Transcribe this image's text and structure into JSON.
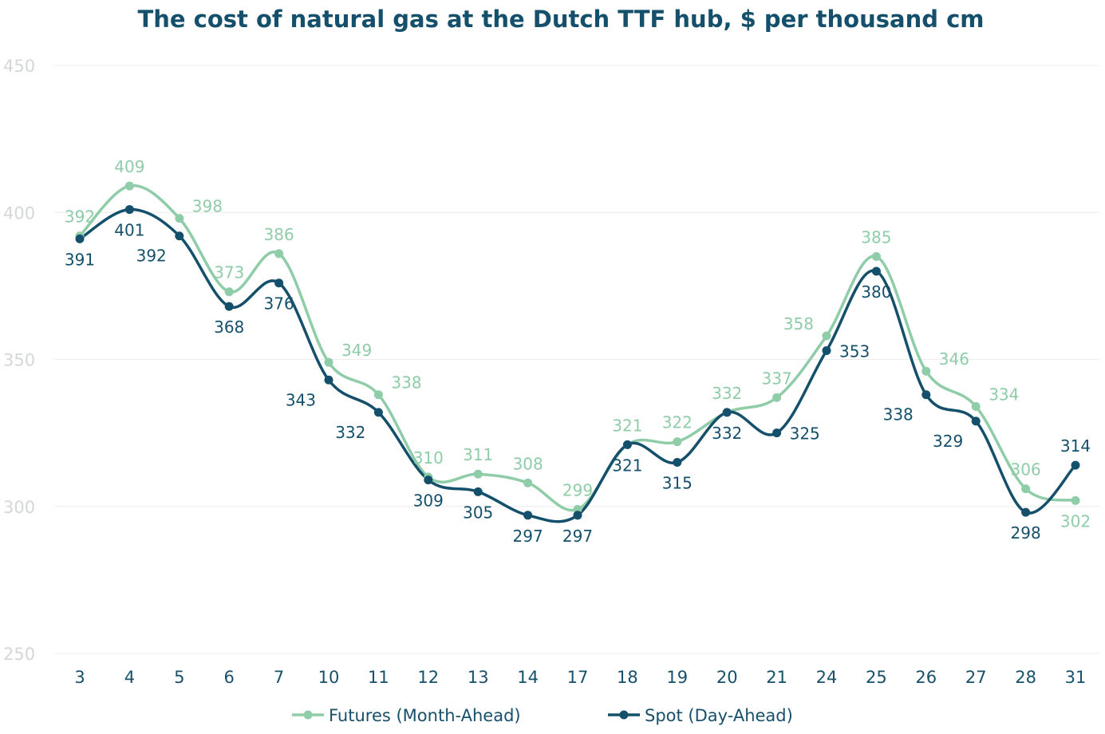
{
  "chart_data": {
    "type": "line",
    "title": "The cost of natural gas at the Dutch TTF hub, $ per thousand cm",
    "xlabel": "",
    "ylabel": "",
    "ylim": [
      250,
      450
    ],
    "yticks": [
      250,
      300,
      350,
      400,
      450
    ],
    "grid": true,
    "legend": "bottom",
    "categories": [
      "3",
      "4",
      "5",
      "6",
      "7",
      "10",
      "11",
      "12",
      "13",
      "14",
      "17",
      "18",
      "19",
      "20",
      "21",
      "24",
      "25",
      "26",
      "27",
      "28",
      "31"
    ],
    "series": [
      {
        "name": "Futures (Month-Ahead)",
        "color": "#8fcca8",
        "values": [
          392,
          409,
          398,
          373,
          386,
          349,
          338,
          310,
          311,
          308,
          299,
          321,
          322,
          332,
          337,
          358,
          385,
          346,
          334,
          306,
          302
        ],
        "label_position": [
          "above",
          "above",
          "above-right",
          "above",
          "above",
          "above-right",
          "above-right",
          "above",
          "above",
          "above",
          "above",
          "above",
          "above",
          "above",
          "above",
          "above-left",
          "above",
          "above-right",
          "above-right",
          "above",
          "below"
        ]
      },
      {
        "name": "Spot (Day-Ahead)",
        "color": "#14506b",
        "values": [
          391,
          401,
          392,
          368,
          376,
          343,
          332,
          309,
          305,
          297,
          297,
          321,
          315,
          332,
          325,
          353,
          380,
          338,
          329,
          298,
          314
        ],
        "label_position": [
          "below",
          "below",
          "below-left",
          "below",
          "below",
          "below-left",
          "below-left",
          "below",
          "below",
          "below",
          "below",
          "below",
          "below",
          "below",
          "right",
          "right",
          "below",
          "below-left",
          "below-left",
          "below",
          "above"
        ]
      }
    ]
  }
}
